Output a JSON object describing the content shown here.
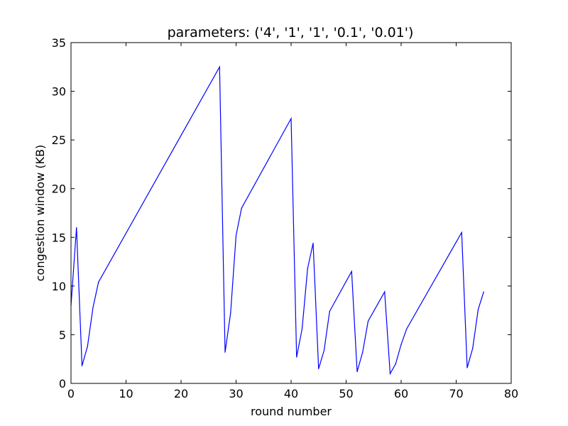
{
  "chart_data": {
    "type": "line",
    "title": "parameters: ('4', '1', '1', '0.1', '0.01')",
    "xlabel": "round number",
    "ylabel": "congestion window (KB)",
    "xlim": [
      0,
      80
    ],
    "ylim": [
      0,
      35
    ],
    "xticks": [
      0,
      10,
      20,
      30,
      40,
      50,
      60,
      70,
      80
    ],
    "yticks": [
      0,
      5,
      10,
      15,
      20,
      25,
      30,
      35
    ],
    "grid": false,
    "legend": "none",
    "line_color": "#0000ff",
    "series": [
      {
        "x": [
          0,
          1,
          2,
          3,
          4,
          5,
          27,
          28,
          29,
          30,
          31,
          40,
          41,
          42,
          43,
          44,
          45,
          46,
          47,
          51,
          52,
          53,
          54,
          57,
          58,
          59,
          60,
          61,
          71,
          72,
          73,
          74,
          75
        ],
        "y": [
          8,
          16,
          1.8,
          3.8,
          7.8,
          10.4,
          32.5,
          3.2,
          7.2,
          15.2,
          18.0,
          27.2,
          2.7,
          5.6,
          11.8,
          14.4,
          1.5,
          3.4,
          7.4,
          11.5,
          1.2,
          3.2,
          6.4,
          9.4,
          1.0,
          2.0,
          4.0,
          5.6,
          15.5,
          1.6,
          3.6,
          7.6,
          9.4
        ]
      }
    ]
  }
}
